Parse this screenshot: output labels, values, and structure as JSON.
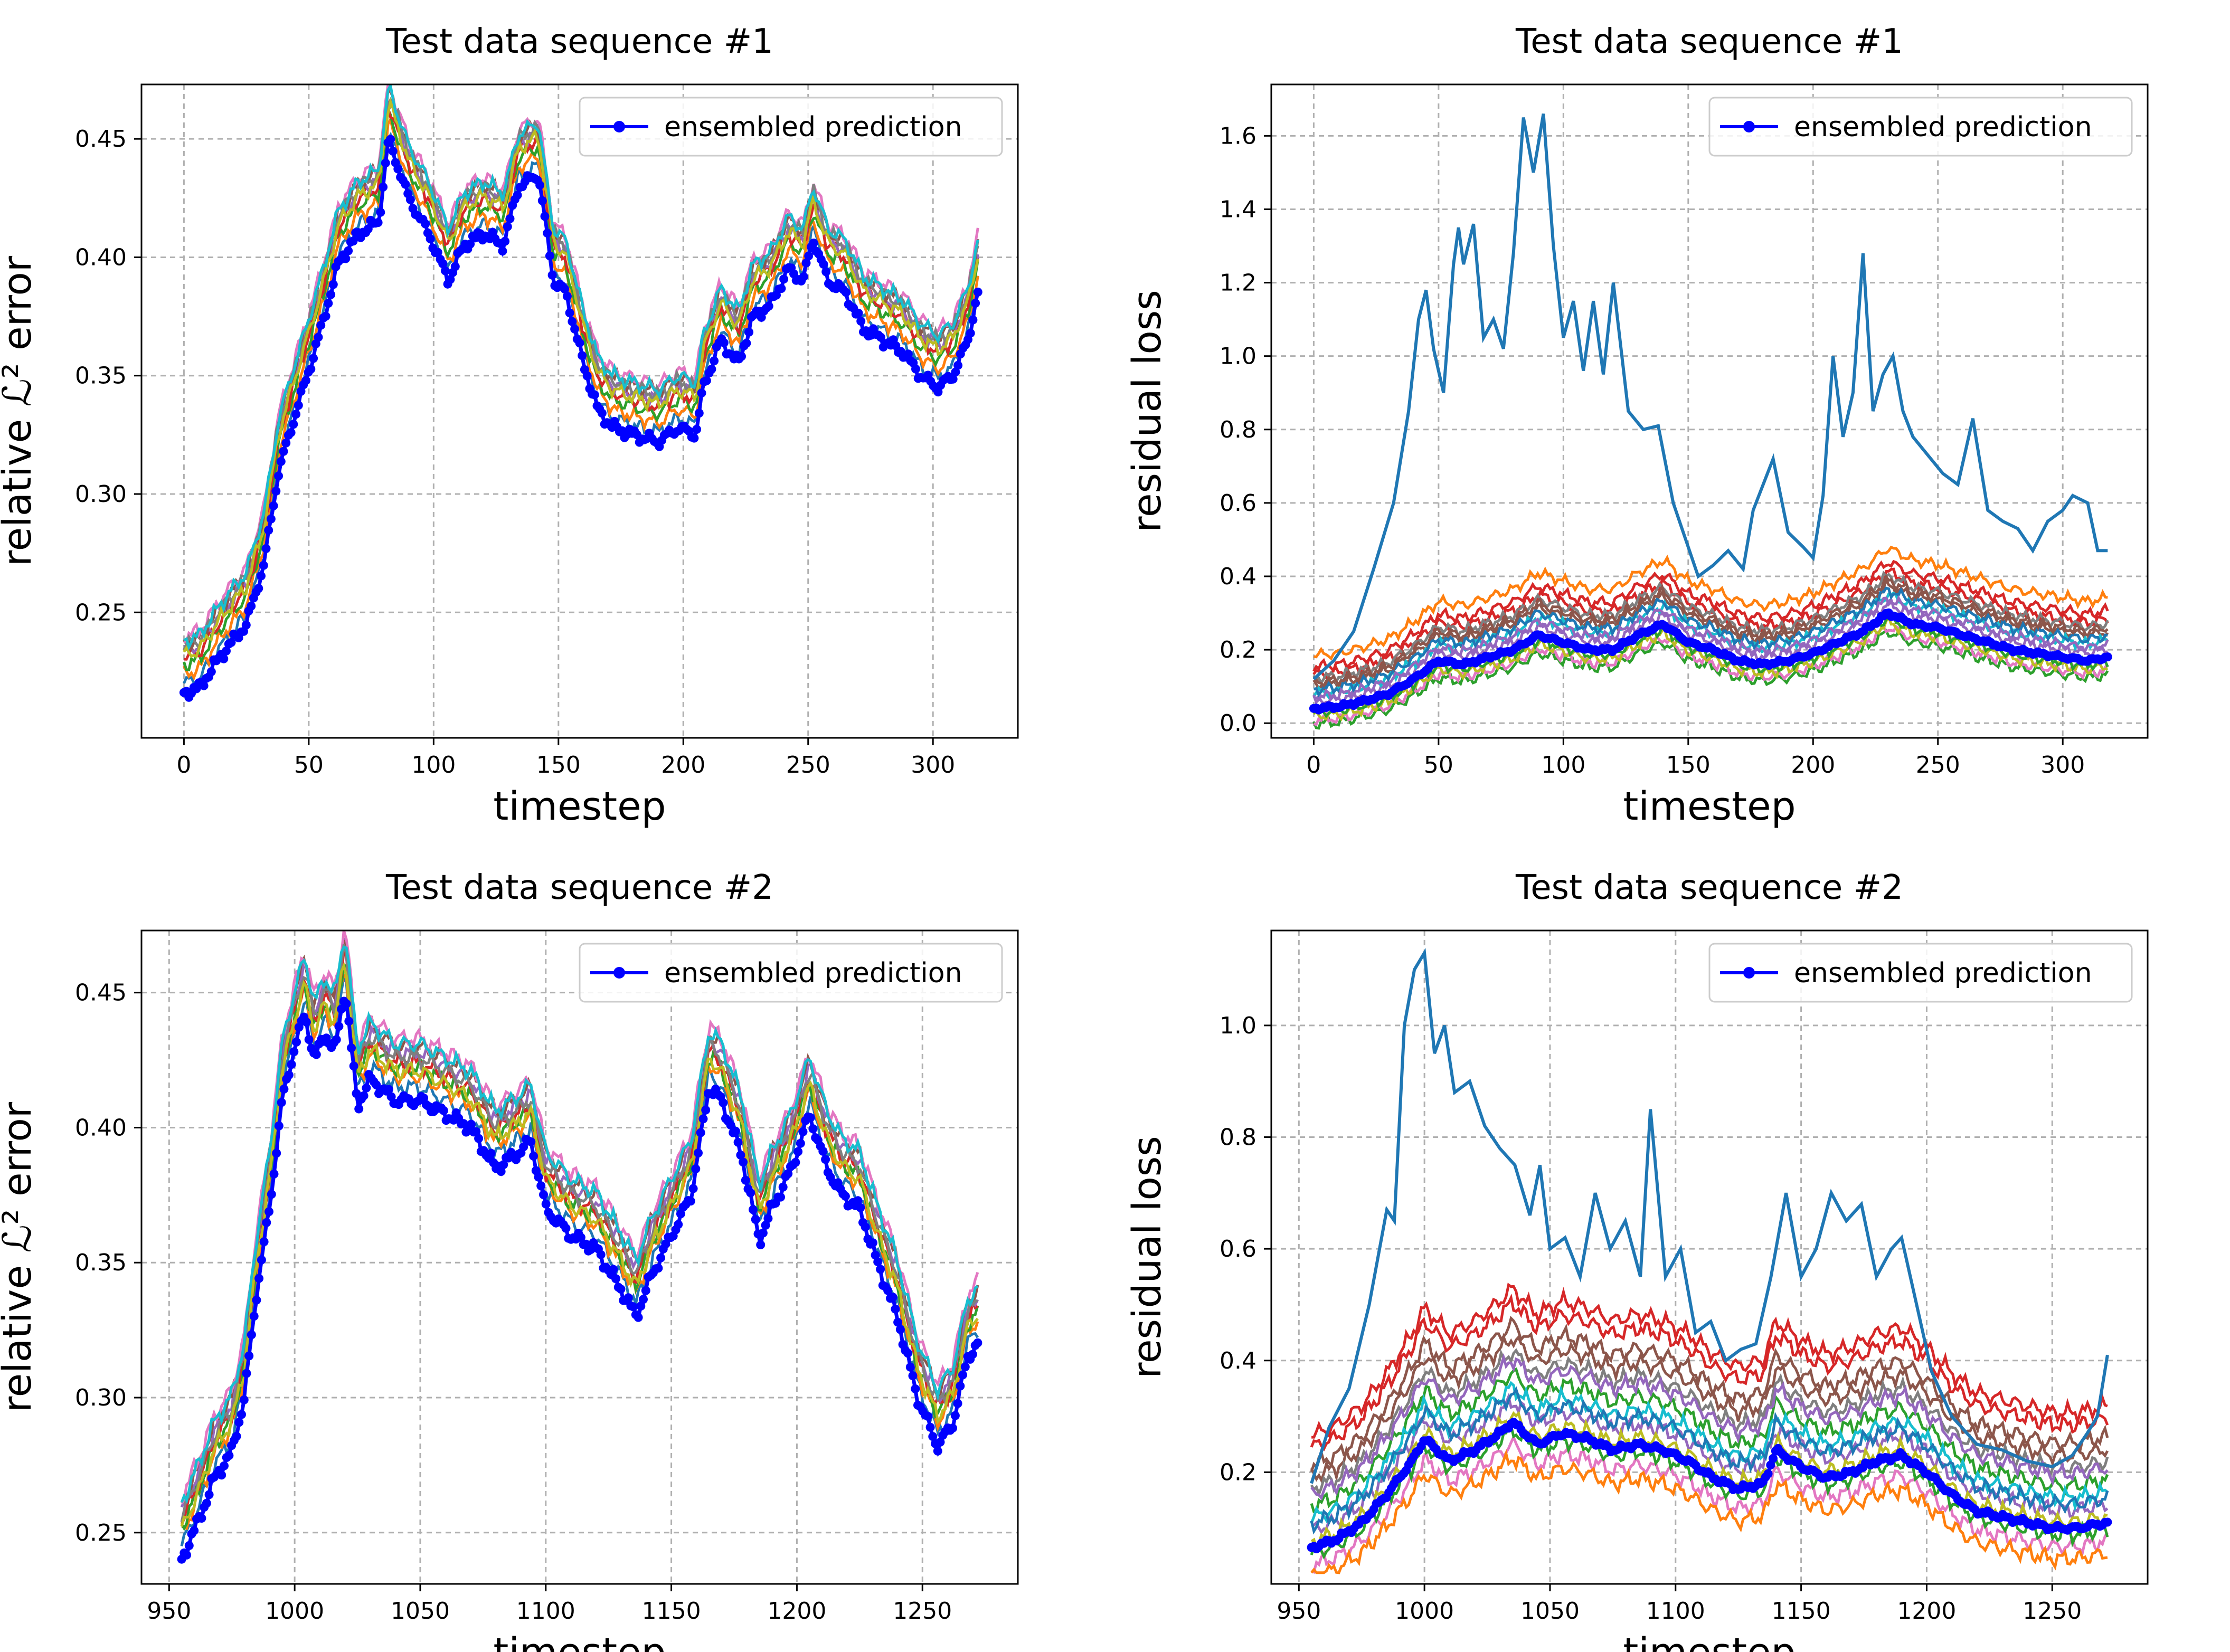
{
  "chart_data": [
    {
      "type": "line",
      "title": "Test data sequence #1",
      "xlabel": "timestep",
      "ylabel": "relative ℒ² error",
      "xlim": [
        -17,
        334
      ],
      "ylim": [
        0.197,
        0.473
      ],
      "xticks": [
        0,
        50,
        100,
        150,
        200,
        250,
        300
      ],
      "yticks": [
        0.25,
        0.3,
        0.35,
        0.4,
        0.45
      ],
      "ytick_labels": [
        "0.25",
        "0.30",
        "0.35",
        "0.40",
        "0.45"
      ],
      "legend": "ensembled prediction",
      "legend_loc": "upper right",
      "grid": true,
      "highlight": {
        "name": "ensembled prediction",
        "color": "#0000ff",
        "marker": "dot",
        "x": [
          0,
          6,
          15,
          25,
          32,
          38,
          45,
          50,
          55,
          62,
          70,
          78,
          82,
          90,
          98,
          106,
          112,
          120,
          128,
          134,
          142,
          148,
          153,
          160,
          166,
          172,
          180,
          190,
          198,
          205,
          208,
          215,
          222,
          228,
          235,
          242,
          248,
          252,
          258,
          265,
          272,
          280,
          288,
          295,
          302,
          308,
          314,
          318
        ],
        "y": [
          0.216,
          0.218,
          0.232,
          0.245,
          0.27,
          0.31,
          0.335,
          0.352,
          0.37,
          0.398,
          0.41,
          0.415,
          0.45,
          0.425,
          0.41,
          0.39,
          0.405,
          0.41,
          0.405,
          0.43,
          0.435,
          0.39,
          0.385,
          0.355,
          0.335,
          0.328,
          0.325,
          0.322,
          0.328,
          0.325,
          0.345,
          0.365,
          0.355,
          0.375,
          0.38,
          0.395,
          0.39,
          0.408,
          0.39,
          0.385,
          0.37,
          0.365,
          0.36,
          0.35,
          0.345,
          0.35,
          0.365,
          0.385
        ]
      },
      "members": {
        "spread": [
          0.004,
          0.008,
          0.012,
          0.015,
          0.018,
          0.021,
          0.024,
          0.02,
          0.016,
          0.022
        ],
        "colors": [
          "#1f77b4",
          "#ff7f0e",
          "#2ca02c",
          "#d62728",
          "#9467bd",
          "#8c564b",
          "#e377c2",
          "#7f7f7f",
          "#bcbd22",
          "#17becf"
        ]
      }
    },
    {
      "type": "line",
      "title": "Test data sequence #1",
      "xlabel": "timestep",
      "ylabel": "residual loss",
      "xlim": [
        -17,
        334
      ],
      "ylim": [
        -0.04,
        1.74
      ],
      "xticks": [
        0,
        50,
        100,
        150,
        200,
        250,
        300
      ],
      "yticks": [
        0.0,
        0.2,
        0.4,
        0.6,
        0.8,
        1.0,
        1.2,
        1.4,
        1.6
      ],
      "ytick_labels": [
        "0.0",
        "0.2",
        "0.4",
        "0.6",
        "0.8",
        "1.0",
        "1.2",
        "1.4",
        "1.6"
      ],
      "legend": "ensembled prediction",
      "legend_loc": "upper right",
      "grid": true,
      "highlight": {
        "name": "ensembled prediction",
        "color": "#0000ff",
        "marker": "dot",
        "x": [
          0,
          10,
          20,
          30,
          40,
          50,
          60,
          70,
          80,
          90,
          100,
          110,
          120,
          130,
          140,
          150,
          160,
          170,
          180,
          190,
          200,
          210,
          220,
          230,
          240,
          250,
          260,
          270,
          280,
          290,
          300,
          310,
          318
        ],
        "y": [
          0.04,
          0.045,
          0.06,
          0.08,
          0.12,
          0.17,
          0.16,
          0.18,
          0.2,
          0.24,
          0.22,
          0.2,
          0.2,
          0.24,
          0.27,
          0.22,
          0.2,
          0.17,
          0.16,
          0.17,
          0.19,
          0.22,
          0.25,
          0.3,
          0.27,
          0.26,
          0.24,
          0.22,
          0.2,
          0.19,
          0.18,
          0.17,
          0.18
        ]
      },
      "outlier": {
        "color": "#1f77b4",
        "x": [
          0,
          8,
          16,
          24,
          32,
          38,
          42,
          45,
          48,
          52,
          56,
          58,
          60,
          64,
          68,
          72,
          76,
          80,
          84,
          88,
          92,
          96,
          100,
          104,
          108,
          112,
          116,
          120,
          126,
          132,
          138,
          144,
          148,
          154,
          160,
          166,
          172,
          176,
          184,
          190,
          196,
          200,
          204,
          208,
          212,
          216,
          220,
          224,
          228,
          232,
          236,
          240,
          246,
          252,
          258,
          264,
          270,
          276,
          282,
          288,
          294,
          300,
          304,
          310,
          314,
          318
        ],
        "y": [
          0.12,
          0.17,
          0.25,
          0.42,
          0.6,
          0.85,
          1.1,
          1.18,
          1.02,
          0.9,
          1.25,
          1.35,
          1.25,
          1.36,
          1.05,
          1.1,
          1.02,
          1.28,
          1.65,
          1.5,
          1.66,
          1.3,
          1.05,
          1.15,
          0.96,
          1.15,
          0.95,
          1.2,
          0.85,
          0.8,
          0.81,
          0.6,
          0.52,
          0.4,
          0.43,
          0.47,
          0.42,
          0.58,
          0.72,
          0.52,
          0.48,
          0.45,
          0.62,
          1.0,
          0.78,
          0.9,
          1.28,
          0.85,
          0.95,
          1.0,
          0.85,
          0.78,
          0.73,
          0.68,
          0.65,
          0.83,
          0.58,
          0.55,
          0.53,
          0.47,
          0.55,
          0.58,
          0.62,
          0.6,
          0.47,
          0.47
        ]
      },
      "members": {
        "offsets": [
          0.09,
          0.06,
          -0.04,
          0.14,
          0.02,
          0.08,
          -0.03,
          0.04,
          -0.02,
          0.05,
          0.11,
          -0.01,
          0.07,
          0.03
        ],
        "colors": [
          "#d62728",
          "#8c564b",
          "#2ca02c",
          "#ff7f0e",
          "#9467bd",
          "#7f7f7f",
          "#e377c2",
          "#17becf",
          "#bcbd22",
          "#1f77b4",
          "#d62728",
          "#2ca02c",
          "#8c564b",
          "#9467bd"
        ]
      }
    },
    {
      "type": "line",
      "title": "Test data sequence #2",
      "xlabel": "timestep",
      "ylabel": "relative ℒ² error",
      "xlim": [
        939,
        1288
      ],
      "ylim": [
        0.231,
        0.473
      ],
      "xticks": [
        950,
        1000,
        1050,
        1100,
        1150,
        1200,
        1250
      ],
      "yticks": [
        0.25,
        0.3,
        0.35,
        0.4,
        0.45
      ],
      "ytick_labels": [
        "0.25",
        "0.30",
        "0.35",
        "0.40",
        "0.45"
      ],
      "legend": "ensembled prediction",
      "legend_loc": "upper right",
      "grid": true,
      "highlight": {
        "name": "ensembled prediction",
        "color": "#0000ff",
        "marker": "dot",
        "x": [
          955,
          962,
          968,
          975,
          980,
          985,
          990,
          995,
          1000,
          1004,
          1008,
          1012,
          1016,
          1020,
          1025,
          1030,
          1040,
          1050,
          1060,
          1070,
          1080,
          1088,
          1094,
          1100,
          1110,
          1120,
          1130,
          1136,
          1142,
          1150,
          1158,
          1165,
          1170,
          1178,
          1185,
          1190,
          1198,
          1205,
          1212,
          1218,
          1225,
          1232,
          1240,
          1248,
          1256,
          1262,
          1268,
          1272
        ],
        "y": [
          0.24,
          0.255,
          0.27,
          0.28,
          0.3,
          0.34,
          0.37,
          0.41,
          0.43,
          0.442,
          0.425,
          0.435,
          0.428,
          0.452,
          0.408,
          0.418,
          0.41,
          0.41,
          0.405,
          0.4,
          0.385,
          0.39,
          0.395,
          0.37,
          0.36,
          0.355,
          0.34,
          0.33,
          0.345,
          0.36,
          0.375,
          0.415,
          0.41,
          0.39,
          0.358,
          0.37,
          0.385,
          0.405,
          0.385,
          0.375,
          0.37,
          0.35,
          0.33,
          0.3,
          0.282,
          0.29,
          0.315,
          0.32
        ]
      },
      "members": {
        "spread": [
          0.005,
          0.009,
          0.012,
          0.014,
          0.018,
          0.02,
          0.023,
          0.016,
          0.011,
          0.021
        ],
        "colors": [
          "#1f77b4",
          "#ff7f0e",
          "#2ca02c",
          "#d62728",
          "#9467bd",
          "#8c564b",
          "#e377c2",
          "#7f7f7f",
          "#bcbd22",
          "#17becf"
        ]
      }
    },
    {
      "type": "line",
      "title": "Test data sequence #2",
      "xlabel": "timestep",
      "ylabel": "residual loss",
      "xlim": [
        939,
        1288
      ],
      "ylim": [
        0.0,
        1.17
      ],
      "xticks": [
        950,
        1000,
        1050,
        1100,
        1150,
        1200,
        1250
      ],
      "yticks": [
        0.2,
        0.4,
        0.6,
        0.8,
        1.0
      ],
      "ytick_labels": [
        "0.2",
        "0.4",
        "0.6",
        "0.8",
        "1.0"
      ],
      "legend": "ensembled prediction",
      "legend_loc": "upper right",
      "grid": true,
      "highlight": {
        "name": "ensembled prediction",
        "color": "#0000ff",
        "marker": "dot",
        "x": [
          955,
          965,
          975,
          985,
          995,
          1000,
          1010,
          1020,
          1030,
          1035,
          1045,
          1055,
          1065,
          1075,
          1085,
          1095,
          1105,
          1115,
          1125,
          1135,
          1140,
          1150,
          1160,
          1170,
          1180,
          1190,
          1200,
          1210,
          1220,
          1230,
          1240,
          1250,
          1260,
          1272
        ],
        "y": [
          0.065,
          0.08,
          0.11,
          0.16,
          0.22,
          0.26,
          0.22,
          0.24,
          0.27,
          0.29,
          0.25,
          0.27,
          0.26,
          0.24,
          0.25,
          0.24,
          0.22,
          0.19,
          0.17,
          0.18,
          0.24,
          0.21,
          0.19,
          0.2,
          0.22,
          0.23,
          0.2,
          0.16,
          0.13,
          0.12,
          0.11,
          0.1,
          0.1,
          0.11
        ]
      },
      "outlier": {
        "color": "#1f77b4",
        "x": [
          955,
          962,
          970,
          978,
          985,
          988,
          992,
          996,
          1000,
          1004,
          1008,
          1012,
          1018,
          1024,
          1030,
          1036,
          1042,
          1046,
          1050,
          1056,
          1062,
          1068,
          1074,
          1080,
          1086,
          1090,
          1096,
          1102,
          1108,
          1114,
          1120,
          1126,
          1132,
          1138,
          1144,
          1150,
          1156,
          1162,
          1168,
          1174,
          1180,
          1186,
          1190,
          1196,
          1202,
          1210,
          1220,
          1230,
          1240,
          1250,
          1258,
          1264,
          1268,
          1272
        ],
        "y": [
          0.18,
          0.28,
          0.35,
          0.5,
          0.67,
          0.65,
          1.0,
          1.1,
          1.13,
          0.95,
          1.0,
          0.88,
          0.9,
          0.82,
          0.78,
          0.75,
          0.66,
          0.75,
          0.6,
          0.62,
          0.55,
          0.7,
          0.6,
          0.65,
          0.55,
          0.85,
          0.55,
          0.6,
          0.45,
          0.47,
          0.4,
          0.42,
          0.43,
          0.55,
          0.7,
          0.55,
          0.6,
          0.7,
          0.65,
          0.68,
          0.55,
          0.6,
          0.62,
          0.5,
          0.38,
          0.3,
          0.25,
          0.24,
          0.22,
          0.21,
          0.23,
          0.27,
          0.3,
          0.41
        ]
      },
      "members": {
        "offsets": [
          0.17,
          0.12,
          0.07,
          0.19,
          0.03,
          0.1,
          -0.03,
          0.05,
          -0.05,
          0.01,
          0.14,
          -0.01,
          0.09,
          0.04
        ],
        "colors": [
          "#d62728",
          "#8c564b",
          "#2ca02c",
          "#d62728",
          "#9467bd",
          "#7f7f7f",
          "#e377c2",
          "#17becf",
          "#ff7f0e",
          "#bcbd22",
          "#8c564b",
          "#2ca02c",
          "#9467bd",
          "#1f77b4"
        ]
      }
    }
  ]
}
